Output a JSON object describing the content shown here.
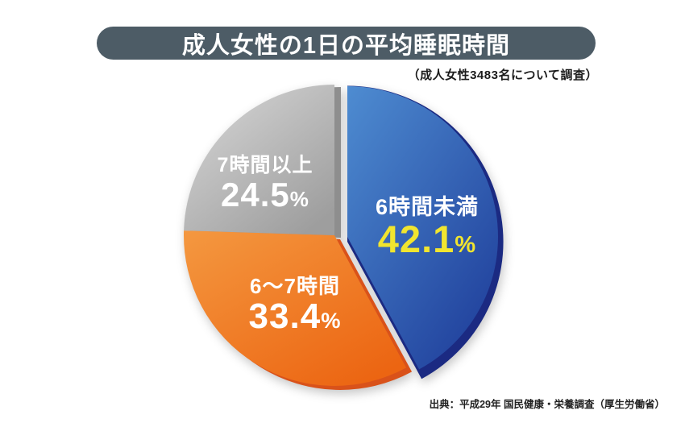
{
  "page": {
    "title": "成人女性の1日の平均睡眠時間",
    "subtitle": "（成人女性3483名について調査）",
    "source": "出典：平成29年 国民健康・栄養調査（厚生労働省）"
  },
  "colors": {
    "banner_bg": "#4d5c66",
    "banner_text": "#ffffff",
    "background": "#ffffff"
  },
  "chart_data": {
    "type": "pie",
    "title": "成人女性の1日の平均睡眠時間",
    "subtitle": "（成人女性3483名について調査）",
    "source": "出典：平成29年 国民健康・栄養調査（厚生労働省）",
    "units": "%",
    "total": 100,
    "start_angle_deg": 0,
    "direction": "clockwise",
    "legend_position": "none",
    "labels": "inside",
    "style": "3d-exploded",
    "slices": [
      {
        "label": "6時間未満",
        "value": 42.1,
        "pct_number": "42.1",
        "pct_suffix": "%",
        "exploded": true,
        "color_light": "#4e8cd1",
        "color_dark": "#20409c",
        "color_depth": "#1b2a82",
        "label_color": "#ffffff",
        "pct_color": "#f1e52f"
      },
      {
        "label": "6〜7時間",
        "value": 33.4,
        "pct_number": "33.4",
        "pct_suffix": "%",
        "exploded": false,
        "color_light": "#f49840",
        "color_dark": "#ec6512",
        "color_depth": "#d9521a",
        "label_color": "#ffffff",
        "pct_color": "#ffffff"
      },
      {
        "label": "7時間以上",
        "value": 24.5,
        "pct_number": "24.5",
        "pct_suffix": "%",
        "exploded": false,
        "color_light": "#d9d9d9",
        "color_dark": "#9e9e9e",
        "color_depth": "#8e8e8e",
        "label_color": "#ffffff",
        "pct_color": "#ffffff"
      }
    ]
  }
}
